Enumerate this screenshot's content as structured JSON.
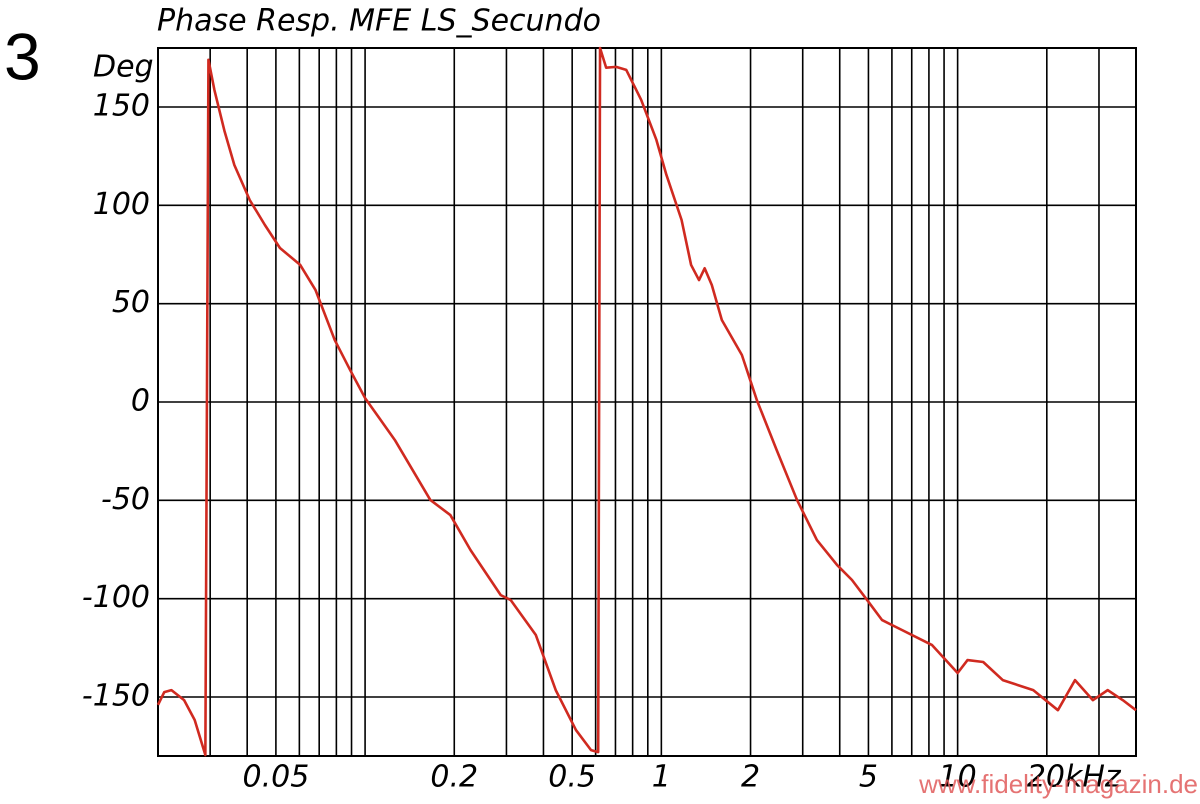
{
  "chart_data": {
    "type": "line",
    "figure_number": "3",
    "title": "Phase Resp. MFE LS_Secundo",
    "y_label": "Deg",
    "watermark": "www.fidelity-magazin.de",
    "log_x": true,
    "grid": true,
    "xlim": [
      0.02,
      40
    ],
    "ylim": [
      -180,
      180
    ],
    "xticks": [
      0.05,
      0.2,
      0.5,
      1,
      2,
      5,
      10,
      {
        "value": 20,
        "label": "20kHz"
      }
    ],
    "xgrid": [
      0.03,
      0.04,
      0.05,
      0.06,
      0.07,
      0.08,
      0.09,
      0.1,
      0.2,
      0.3,
      0.4,
      0.5,
      0.6,
      0.7,
      0.8,
      0.9,
      1,
      2,
      3,
      4,
      5,
      6,
      7,
      8,
      9,
      10,
      20,
      30
    ],
    "yticks": [
      -150,
      -100,
      -50,
      0,
      50,
      100,
      150
    ],
    "series": [
      {
        "color": "#d02a20",
        "x": [
          0.02,
          0.021,
          0.0222,
          0.0245,
          0.0266,
          0.0289,
          0.0296,
          0.031,
          0.0335,
          0.0362,
          0.0408,
          0.0459,
          0.0516,
          0.0604,
          0.068,
          0.079,
          0.089,
          0.1,
          0.126,
          0.166,
          0.194,
          0.227,
          0.287,
          0.31,
          0.377,
          0.44,
          0.515,
          0.579,
          0.612,
          0.621,
          0.651,
          0.704,
          0.761,
          0.855,
          0.962,
          1.04,
          1.17,
          1.26,
          1.34,
          1.4,
          1.48,
          1.6,
          1.87,
          2.1,
          2.45,
          2.87,
          3.35,
          3.92,
          4.4,
          4.95,
          5.56,
          6.5,
          8.2,
          10,
          10.8,
          12.2,
          14.2,
          18,
          21.8,
          24.9,
          28.6,
          32.1,
          36.1,
          40
        ],
        "values": [
          -154,
          -147.5,
          -146.5,
          -151.6,
          -161.7,
          -179.5,
          174,
          158.7,
          138,
          120.5,
          102.7,
          90,
          78.3,
          69.7,
          57,
          31.5,
          16.3,
          2,
          -19.3,
          -49.8,
          -57.5,
          -75.3,
          -98.2,
          -100.7,
          -118.5,
          -146.5,
          -166.8,
          -177,
          -178,
          180,
          170,
          170.4,
          168.9,
          153.6,
          133.3,
          115.5,
          92.6,
          69.7,
          62,
          68,
          59.5,
          41.7,
          23.9,
          1,
          -24.4,
          -49.8,
          -70.2,
          -82.9,
          -90.5,
          -100.7,
          -110.9,
          -116,
          -123.6,
          -137.8,
          -131.2,
          -132.2,
          -141.4,
          -146.5,
          -156.7,
          -141.4,
          -151.6,
          -146.5,
          -151.6,
          -156.7
        ]
      }
    ]
  }
}
